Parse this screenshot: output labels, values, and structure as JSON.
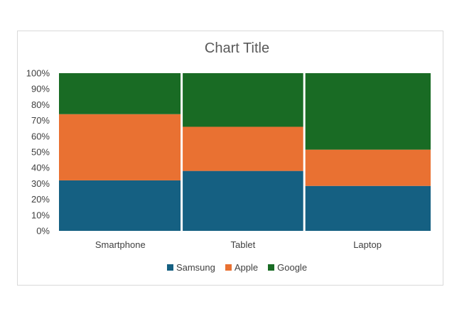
{
  "chart_data": {
    "type": "bar",
    "stacked": true,
    "percent": true,
    "variable_width": true,
    "title": "Chart Title",
    "categories": [
      "Smartphone",
      "Tablet",
      "Laptop"
    ],
    "category_widths": [
      0.33,
      0.33,
      0.34
    ],
    "series": [
      {
        "name": "Samsung",
        "color": "#156082",
        "values": [
          32,
          38,
          28.5
        ]
      },
      {
        "name": "Apple",
        "color": "#E97132",
        "values": [
          42,
          28,
          23
        ]
      },
      {
        "name": "Google",
        "color": "#196B24",
        "values": [
          26,
          34,
          48.5
        ]
      }
    ],
    "ylim": [
      0,
      100
    ],
    "yticks": [
      "0%",
      "10%",
      "20%",
      "30%",
      "40%",
      "50%",
      "60%",
      "70%",
      "80%",
      "90%",
      "100%"
    ],
    "legend_position": "bottom",
    "grid": false
  }
}
